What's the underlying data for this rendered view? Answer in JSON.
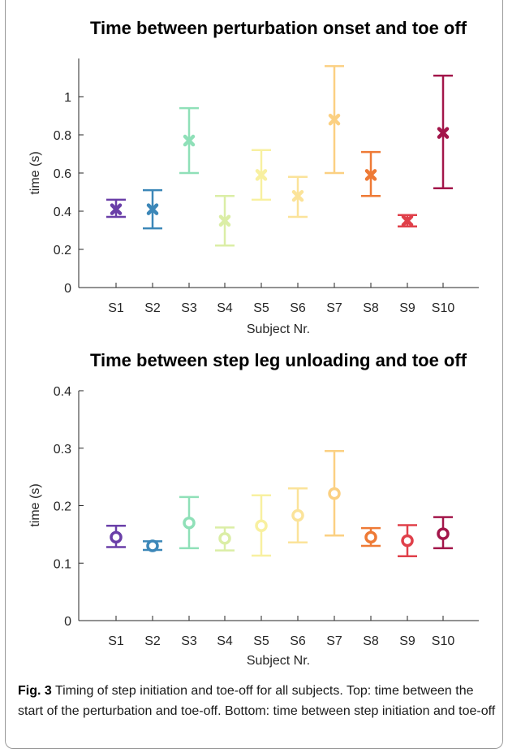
{
  "chart_data": [
    {
      "type": "scatter",
      "title": "Time between perturbation onset and toe off",
      "xlabel": "Subject Nr.",
      "ylabel": "time (s)",
      "ylim": [
        0,
        1.2
      ],
      "yticks": [
        "0",
        "0.2",
        "0.4",
        "0.6",
        "0.8",
        "1"
      ],
      "marker": "x",
      "categories": [
        "S1",
        "S2",
        "S3",
        "S4",
        "S5",
        "S6",
        "S7",
        "S8",
        "S9",
        "S10"
      ],
      "values": [
        0.41,
        0.41,
        0.77,
        0.35,
        0.59,
        0.48,
        0.88,
        0.59,
        0.35,
        0.81
      ],
      "lower": [
        0.37,
        0.31,
        0.6,
        0.22,
        0.46,
        0.37,
        0.6,
        0.48,
        0.32,
        0.52
      ],
      "upper": [
        0.46,
        0.51,
        0.94,
        0.48,
        0.72,
        0.58,
        1.16,
        0.71,
        0.38,
        1.11
      ]
    },
    {
      "type": "scatter",
      "title": "Time between step leg unloading and toe off",
      "xlabel": "Subject Nr.",
      "ylabel": "time  (s)",
      "ylim": [
        0,
        0.4
      ],
      "yticks": [
        "0",
        "0.1",
        "0.2",
        "0.3",
        "0.4"
      ],
      "marker": "o",
      "categories": [
        "S1",
        "S2",
        "S3",
        "S4",
        "S5",
        "S6",
        "S7",
        "S8",
        "S9",
        "S10"
      ],
      "values": [
        0.145,
        0.13,
        0.17,
        0.143,
        0.165,
        0.183,
        0.221,
        0.145,
        0.139,
        0.151
      ],
      "lower": [
        0.128,
        0.123,
        0.126,
        0.122,
        0.113,
        0.136,
        0.148,
        0.13,
        0.112,
        0.126
      ],
      "upper": [
        0.165,
        0.138,
        0.215,
        0.162,
        0.218,
        0.23,
        0.295,
        0.161,
        0.166,
        0.18
      ]
    }
  ],
  "colors": [
    "#6a3fa8",
    "#3c87b8",
    "#8fe0b8",
    "#dbeea6",
    "#f8f0a0",
    "#fbe39a",
    "#fbd082",
    "#ee7a36",
    "#e0404a",
    "#a3164a"
  ],
  "caption": {
    "label": "Fig. 3",
    "text": " Timing of step initiation and toe-off for all subjects. Top: time between the start of the perturbation and toe-off. Bottom: time between step initiation and toe-off"
  }
}
